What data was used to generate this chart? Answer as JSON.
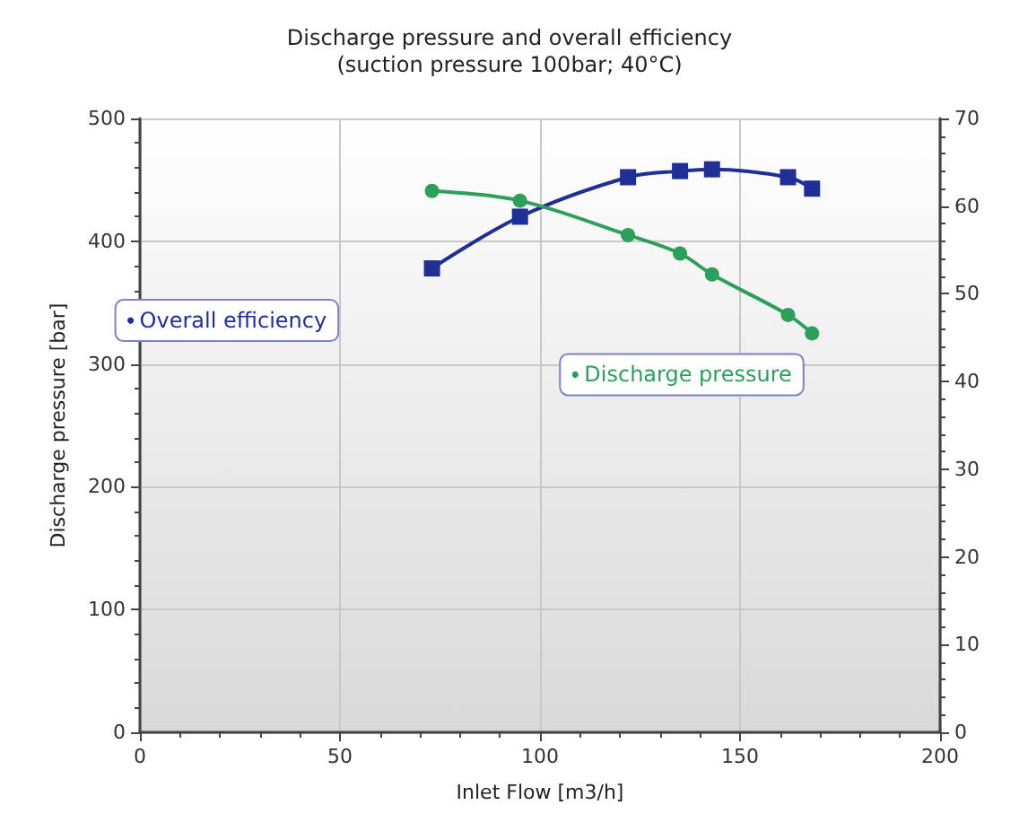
{
  "chart_data": {
    "type": "line",
    "title": "Discharge pressure and overall efficiency",
    "subtitle": "(suction pressure 100bar; 40°C)",
    "xlabel": "Inlet Flow [m3/h]",
    "ylabel": "Discharge pressure [bar]",
    "x": [
      73,
      95,
      122,
      135,
      143,
      162,
      168
    ],
    "series": [
      {
        "name": "Overall efficiency",
        "color": "#1f2f96",
        "axis": "y2",
        "marker": "square",
        "values": [
          52.9,
          58.8,
          63.3,
          64.0,
          64.2,
          63.3,
          62.0
        ]
      },
      {
        "name": "Discharge pressure",
        "color": "#2e9e5b",
        "marker": "circle",
        "values": [
          441,
          433,
          405,
          390,
          373,
          340,
          325
        ]
      }
    ],
    "xlim": [
      0,
      200
    ],
    "xticks": [
      0,
      50,
      100,
      150,
      200
    ],
    "ylim": [
      0,
      500
    ],
    "yticks": [
      0,
      100,
      200,
      300,
      400,
      500
    ],
    "y2lim": [
      0,
      70
    ],
    "y2ticks": [
      0,
      10,
      20,
      30,
      40,
      50,
      60,
      70
    ],
    "grid": true,
    "legend": "left"
  }
}
